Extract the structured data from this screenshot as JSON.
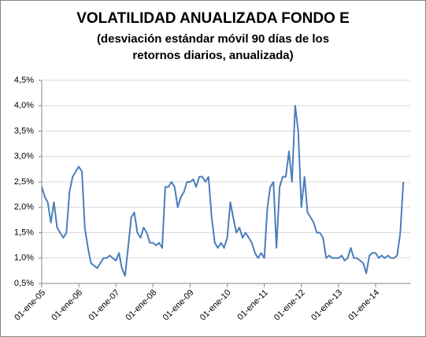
{
  "chart_data": {
    "type": "line",
    "title": "VOLATILIDAD ANUALIZADA FONDO E",
    "subtitle": "(desviación estándar móvil 90 días de los retornos diarios, anualizada)",
    "x": [
      "2005-01-01",
      "2005-02-01",
      "2005-03-01",
      "2005-04-01",
      "2005-05-01",
      "2005-06-01",
      "2005-07-01",
      "2005-08-01",
      "2005-09-01",
      "2005-10-01",
      "2005-11-01",
      "2005-12-01",
      "2006-01-01",
      "2006-02-01",
      "2006-03-01",
      "2006-04-01",
      "2006-05-01",
      "2006-06-01",
      "2006-07-01",
      "2006-08-01",
      "2006-09-01",
      "2006-10-01",
      "2006-11-01",
      "2006-12-01",
      "2007-01-01",
      "2007-02-01",
      "2007-03-01",
      "2007-04-01",
      "2007-05-01",
      "2007-06-01",
      "2007-07-01",
      "2007-08-01",
      "2007-09-01",
      "2007-10-01",
      "2007-11-01",
      "2007-12-01",
      "2008-01-01",
      "2008-02-01",
      "2008-03-01",
      "2008-04-01",
      "2008-05-01",
      "2008-06-01",
      "2008-07-01",
      "2008-08-01",
      "2008-09-01",
      "2008-10-01",
      "2008-11-01",
      "2008-12-01",
      "2009-01-01",
      "2009-02-01",
      "2009-03-01",
      "2009-04-01",
      "2009-05-01",
      "2009-06-01",
      "2009-07-01",
      "2009-08-01",
      "2009-09-01",
      "2009-10-01",
      "2009-11-01",
      "2009-12-01",
      "2010-01-01",
      "2010-02-01",
      "2010-03-01",
      "2010-04-01",
      "2010-05-01",
      "2010-06-01",
      "2010-07-01",
      "2010-08-01",
      "2010-09-01",
      "2010-10-01",
      "2010-11-01",
      "2010-12-01",
      "2011-01-01",
      "2011-02-01",
      "2011-03-01",
      "2011-04-01",
      "2011-05-01",
      "2011-06-01",
      "2011-07-01",
      "2011-08-01",
      "2011-09-01",
      "2011-10-01",
      "2011-11-01",
      "2011-12-01",
      "2012-01-01",
      "2012-02-01",
      "2012-03-01",
      "2012-04-01",
      "2012-05-01",
      "2012-06-01",
      "2012-07-01",
      "2012-08-01",
      "2012-09-01",
      "2012-10-01",
      "2012-11-01",
      "2012-12-01",
      "2013-01-01",
      "2013-02-01",
      "2013-03-01",
      "2013-04-01",
      "2013-05-01",
      "2013-06-01",
      "2013-07-01",
      "2013-08-01",
      "2013-09-01",
      "2013-10-01",
      "2013-11-01",
      "2013-12-01",
      "2014-01-01",
      "2014-02-01",
      "2014-03-01",
      "2014-04-01",
      "2014-05-01",
      "2014-06-01",
      "2014-07-01",
      "2014-08-01",
      "2014-09-01",
      "2014-10-01"
    ],
    "series": [
      {
        "color": "#4a7ebb",
        "values": [
          2.4,
          2.2,
          2.1,
          1.7,
          2.1,
          1.6,
          1.5,
          1.4,
          1.5,
          2.3,
          2.6,
          2.7,
          2.8,
          2.7,
          1.6,
          1.2,
          0.9,
          0.85,
          0.8,
          0.9,
          1.0,
          1.0,
          1.05,
          1.0,
          0.95,
          1.1,
          0.8,
          0.65,
          1.2,
          1.8,
          1.9,
          1.5,
          1.4,
          1.6,
          1.5,
          1.3,
          1.3,
          1.25,
          1.3,
          1.2,
          2.4,
          2.4,
          2.5,
          2.4,
          2.0,
          2.2,
          2.3,
          2.5,
          2.5,
          2.55,
          2.4,
          2.6,
          2.6,
          2.5,
          2.6,
          1.8,
          1.3,
          1.2,
          1.3,
          1.2,
          1.4,
          2.1,
          1.8,
          1.5,
          1.6,
          1.4,
          1.5,
          1.4,
          1.3,
          1.1,
          1.0,
          1.1,
          1.0,
          2.0,
          2.4,
          2.5,
          1.2,
          2.4,
          2.6,
          2.6,
          3.1,
          2.5,
          4.0,
          3.5,
          2.0,
          2.6,
          1.9,
          1.8,
          1.7,
          1.5,
          1.5,
          1.4,
          1.0,
          1.05,
          1.0,
          1.0,
          1.0,
          1.05,
          0.95,
          1.0,
          1.2,
          1.0,
          1.0,
          0.95,
          0.9,
          0.7,
          1.05,
          1.1,
          1.1,
          1.0,
          1.05,
          1.0,
          1.05,
          1.0,
          1.0,
          1.05,
          1.5,
          2.5
        ]
      }
    ],
    "xlim": [
      "2005-01-01",
      "2014-12-08"
    ],
    "xticks": [
      {
        "value": "2005-01-01",
        "label": "01-ene-05"
      },
      {
        "value": "2006-01-01",
        "label": "01-ene-06"
      },
      {
        "value": "2007-01-01",
        "label": "01-ene-07"
      },
      {
        "value": "2008-01-01",
        "label": "01-ene-08"
      },
      {
        "value": "2009-01-01",
        "label": "01-ene-09"
      },
      {
        "value": "2010-01-01",
        "label": "01-ene-10"
      },
      {
        "value": "2011-01-01",
        "label": "01-ene-11"
      },
      {
        "value": "2012-01-01",
        "label": "01-ene-12"
      },
      {
        "value": "2013-01-01",
        "label": "01-ene-13"
      },
      {
        "value": "2014-01-01",
        "label": "01-ene-14"
      }
    ],
    "ylim": [
      0.5,
      4.5
    ],
    "yticks": [
      {
        "value": 0.5,
        "label": "0,5%"
      },
      {
        "value": 1.0,
        "label": "1,0%"
      },
      {
        "value": 1.5,
        "label": "1,5%"
      },
      {
        "value": 2.0,
        "label": "2,0%"
      },
      {
        "value": 2.5,
        "label": "2,5%"
      },
      {
        "value": 3.0,
        "label": "3,0%"
      },
      {
        "value": 3.5,
        "label": "3,5%"
      },
      {
        "value": 4.0,
        "label": "4,0%"
      },
      {
        "value": 4.5,
        "label": "4,5%"
      }
    ],
    "grid": true
  }
}
